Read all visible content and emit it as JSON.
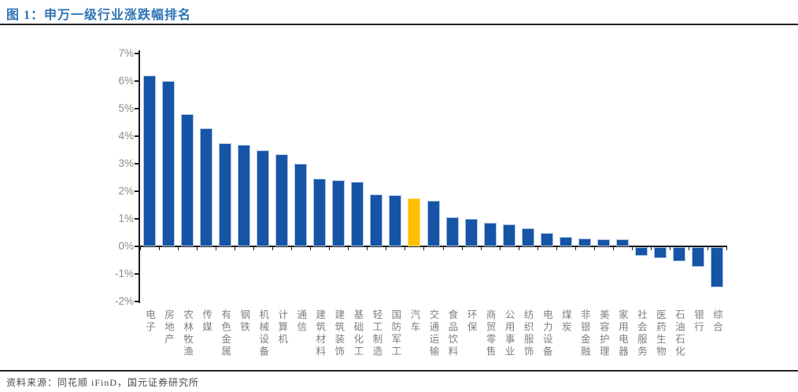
{
  "figure": {
    "title": "图 1：申万一级行业涨跌幅排名",
    "source": "资料来源：同花顺 iFinD，国元证券研究所"
  },
  "chart_data": {
    "type": "bar",
    "title": "申万一级行业涨跌幅排名",
    "categories": [
      "电子",
      "房地产",
      "农林牧渔",
      "传媒",
      "有色金属",
      "钢铁",
      "机械设备",
      "计算机",
      "通信",
      "建筑材料",
      "建筑装饰",
      "基础化工",
      "轻工制造",
      "国防军工",
      "汽车",
      "交通运输",
      "食品饮料",
      "环保",
      "商贸零售",
      "公用事业",
      "纺织服饰",
      "电力设备",
      "煤炭",
      "非银金融",
      "美容护理",
      "家用电器",
      "社会服务",
      "医药生物",
      "石油石化",
      "银行",
      "综合"
    ],
    "values": [
      6.2,
      6.0,
      4.8,
      4.3,
      3.75,
      3.7,
      3.5,
      3.35,
      3.0,
      2.45,
      2.4,
      2.35,
      1.9,
      1.85,
      1.75,
      1.65,
      1.05,
      1.0,
      0.85,
      0.8,
      0.65,
      0.5,
      0.35,
      0.3,
      0.25,
      0.25,
      -0.3,
      -0.4,
      -0.5,
      -0.7,
      -1.45
    ],
    "unit": "%",
    "highlight_category": "汽车",
    "highlight_index": 14,
    "colors": {
      "bar": "#1655A6",
      "bar_edge": "#A9C4E4",
      "highlight": "#FFC000",
      "highlight_edge": "#FFE08A",
      "axis": "#1a1a1a",
      "tick_label": "#8c8c8c",
      "category_label": "#7f7f7f"
    },
    "xlabel": "",
    "ylabel": "",
    "yticks": [
      7,
      6,
      5,
      4,
      3,
      2,
      1,
      0,
      -1,
      -2
    ],
    "ytick_labels": [
      "7%",
      "6%",
      "5%",
      "4%",
      "3%",
      "2%",
      "1%",
      "0%",
      "-1%",
      "-2%"
    ],
    "ylim": [
      -2,
      7
    ],
    "grid": false,
    "legend": null
  }
}
